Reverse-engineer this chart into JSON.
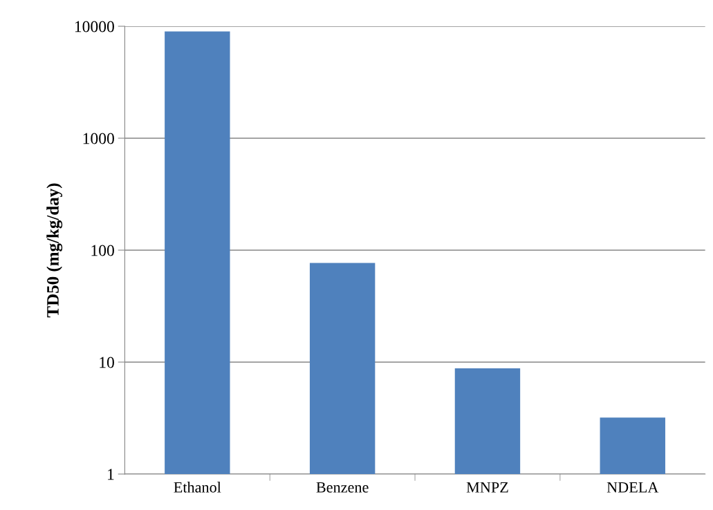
{
  "chart_data": {
    "type": "bar",
    "ylabel": "TD50 (mg/kg/day)",
    "categories": [
      "Ethanol",
      "Benzene",
      "MNPZ",
      "NDELA"
    ],
    "values": [
      9000,
      77,
      8.8,
      3.2
    ],
    "color": "#4f81bd",
    "log": true,
    "ylim": [
      1,
      10000
    ],
    "yticks": [
      1,
      10,
      100,
      1000,
      10000
    ],
    "grid": "y"
  }
}
